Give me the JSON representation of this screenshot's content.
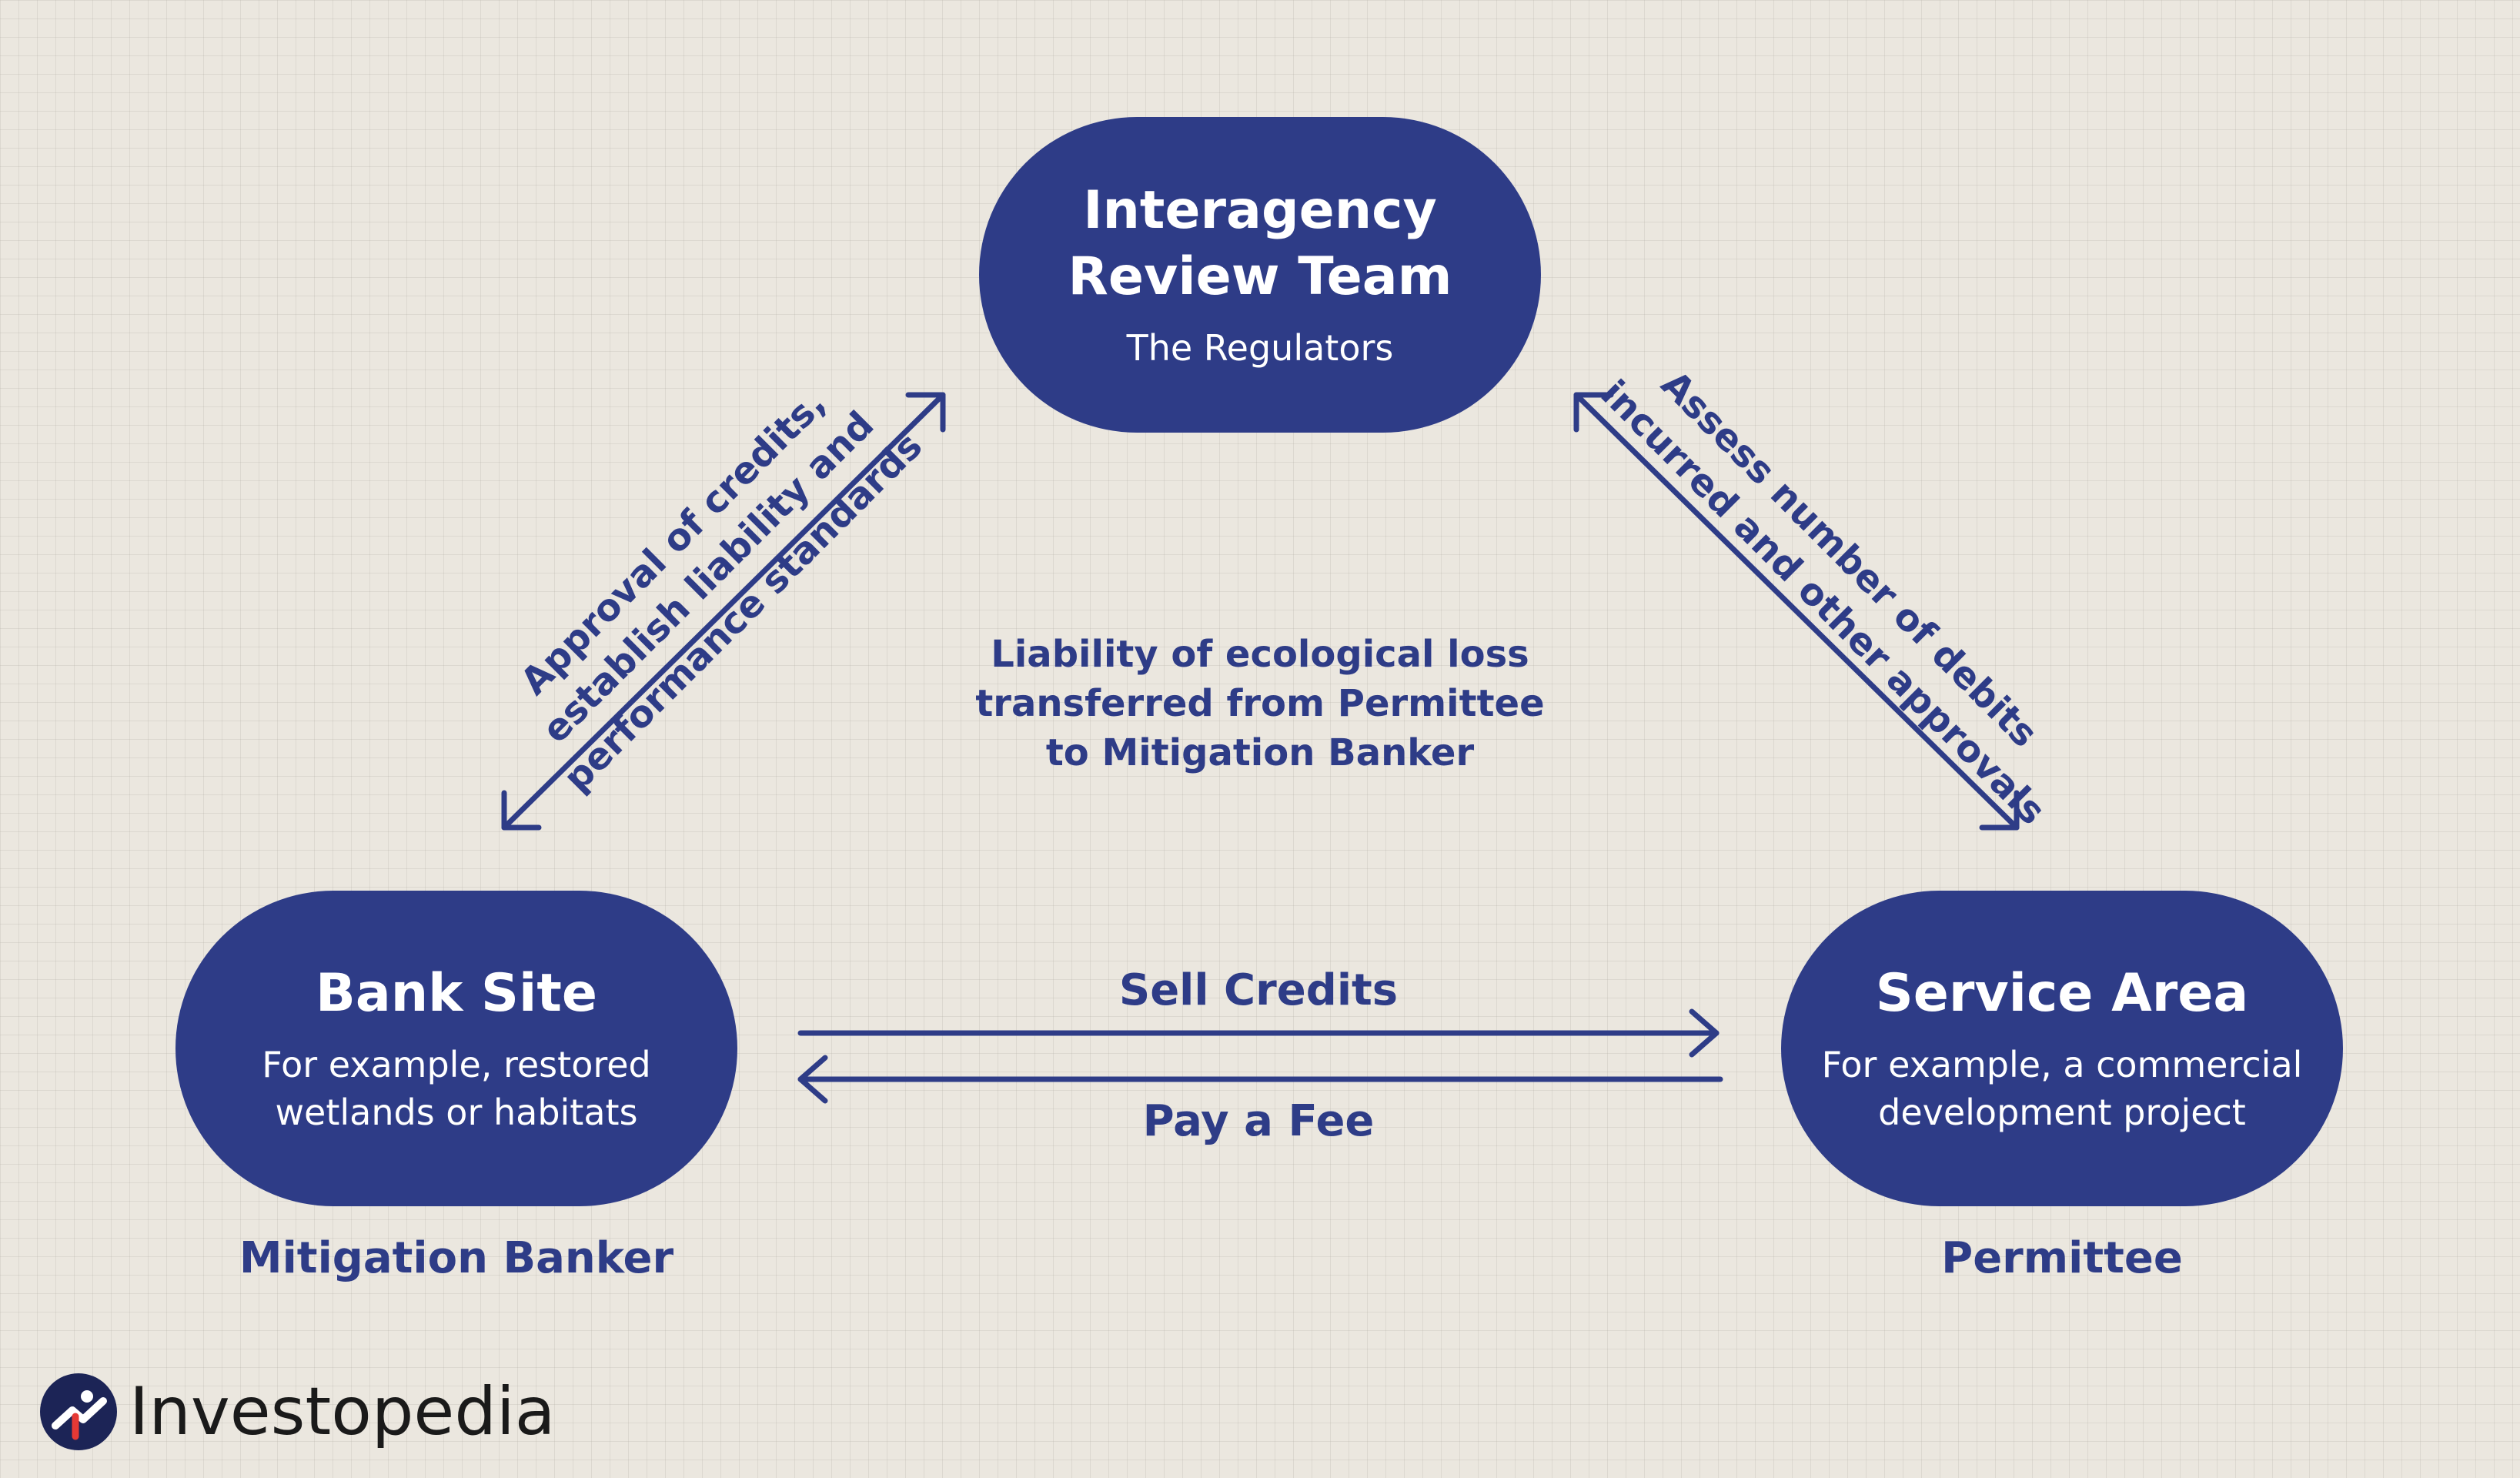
{
  "nodes": {
    "top": {
      "title_lines": [
        "Interagency",
        "Review Team"
      ],
      "subtitle_lines": [
        "The Regulators"
      ]
    },
    "left": {
      "title_lines": [
        "Bank Site"
      ],
      "subtitle_lines": [
        "For example, restored",
        "wetlands or habitats"
      ],
      "role": "Mitigation Banker"
    },
    "right": {
      "title_lines": [
        "Service Area"
      ],
      "subtitle_lines": [
        "For example, a commercial",
        "development project"
      ],
      "role": "Permittee"
    }
  },
  "edges": {
    "left_diagonal": [
      "Approval of credits,",
      "establish liability and",
      "performance standards"
    ],
    "right_diagonal": [
      "Assess number of debits",
      "incurred and other approvals"
    ],
    "center_note": [
      "Liability of ecological loss",
      "transferred from Permittee",
      "to Mitigation Banker"
    ],
    "sell": "Sell Credits",
    "pay": "Pay a Fee"
  },
  "brand": {
    "name": "Investopedia",
    "icon": "investopedia-logo-icon"
  },
  "colors": {
    "primary": "#2e3c87",
    "background": "#ebe7df",
    "node_text": "#ffffff"
  }
}
